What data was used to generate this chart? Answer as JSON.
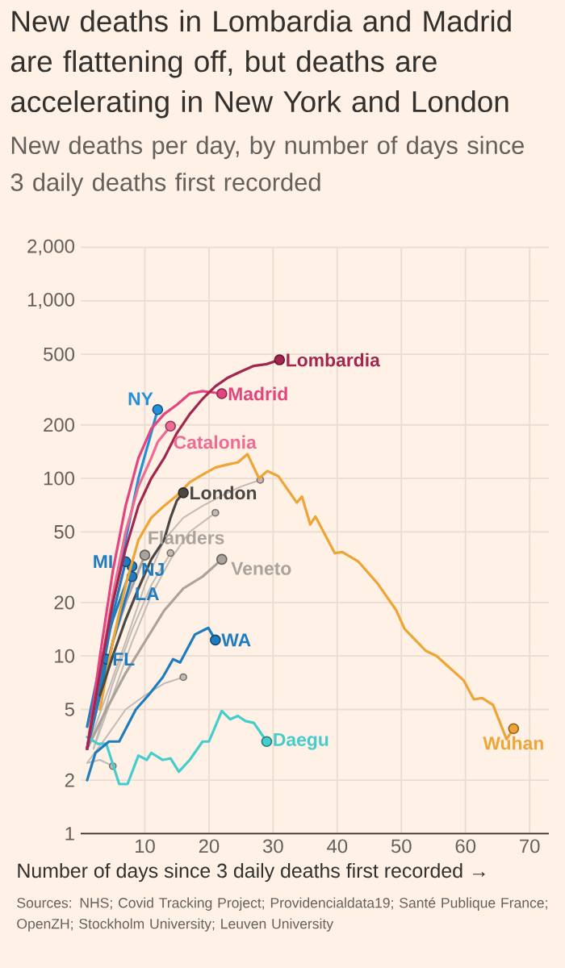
{
  "chart_data": {
    "type": "line",
    "title": "New deaths in Lombardia and Madrid are flattening off, but deaths are accelerating in New York and London",
    "subtitle": "New deaths per day, by number of days since 3 daily deaths first recorded",
    "xlabel": "Number of days since 3 daily deaths first recorded →",
    "annotations": [
      "Sources: NHS; Covid Tracking Project; Providencialdata19; Santé Publique France; OpenZH; Stockholm University; Leuven University"
    ],
    "log": true,
    "grid": true,
    "xlim": [
      0,
      73
    ],
    "xticks": [
      10,
      20,
      30,
      40,
      50,
      60,
      70
    ],
    "ylim": [
      1,
      2000
    ],
    "yticks": [
      1,
      2,
      5,
      10,
      20,
      50,
      100,
      200,
      500,
      {
        "value": 1000,
        "label": "1,000"
      },
      {
        "value": 2000,
        "label": "2,000"
      }
    ],
    "series": [
      {
        "name": "Lombardia",
        "color": "#a3264f",
        "x": [
          1,
          3,
          5,
          7,
          9,
          11,
          13,
          15,
          17,
          19,
          21,
          23,
          25,
          27,
          29,
          31
        ],
        "values": [
          3,
          8,
          20,
          40,
          70,
          100,
          130,
          180,
          230,
          280,
          330,
          370,
          400,
          430,
          440,
          465
        ]
      },
      {
        "name": "Madrid",
        "color": "#e3457f",
        "x": [
          1,
          3,
          5,
          7,
          9,
          11,
          13,
          15,
          17,
          19,
          22
        ],
        "values": [
          3,
          10,
          30,
          70,
          130,
          190,
          230,
          260,
          300,
          310,
          300
        ]
      },
      {
        "name": "Catalonia",
        "color": "#ee6b93",
        "x": [
          1,
          3,
          5,
          7,
          9,
          11,
          12,
          14
        ],
        "values": [
          3,
          8,
          22,
          50,
          90,
          130,
          160,
          197
        ]
      },
      {
        "name": "NY",
        "color": "#2590d8",
        "x": [
          1,
          3,
          5,
          7,
          9,
          11,
          12
        ],
        "values": [
          3,
          8,
          20,
          45,
          100,
          180,
          244
        ]
      },
      {
        "name": "London",
        "color": "#4a4745",
        "x": [
          3,
          5,
          7,
          9,
          11,
          13,
          14,
          15,
          16
        ],
        "values": [
          6,
          10,
          16,
          24,
          35,
          45,
          60,
          75,
          83
        ]
      },
      {
        "name": "Wuhan",
        "color": "#eea436",
        "x": [
          3,
          5,
          7,
          9,
          11,
          13,
          15,
          17,
          19,
          21,
          23,
          24.5,
          26,
          27.8,
          29.1,
          30.8,
          33.7,
          34.5,
          35.8,
          36.6,
          39.6,
          40.8,
          43.3,
          46.3,
          49.2,
          50.5,
          53.8,
          55.5,
          59.7,
          61.3,
          62.6,
          64.3,
          66.4,
          67.5
        ],
        "values": [
          5,
          12,
          25,
          45,
          60,
          70,
          80,
          95,
          105,
          115,
          120,
          123,
          137,
          100,
          110,
          103,
          73,
          79,
          55,
          61,
          38,
          38.5,
          34,
          25.6,
          18.1,
          14.2,
          10.7,
          10,
          7.3,
          5.7,
          5.8,
          5.3,
          3.4,
          3.9
        ]
      },
      {
        "name": "WA",
        "color": "#1f7cbf",
        "x": [
          1,
          2.3,
          4.4,
          6,
          8.6,
          10.7,
          12.8,
          14.4,
          15.5,
          17.8,
          19.9,
          21
        ],
        "values": [
          2,
          2.85,
          3.3,
          3.3,
          5,
          6.1,
          7.6,
          9.6,
          9.2,
          13.2,
          14.4,
          12.3
        ]
      },
      {
        "name": "Daegu",
        "color": "#45cccc",
        "x": [
          1,
          2.7,
          4,
          6,
          7.3,
          9,
          10.3,
          11,
          12.8,
          14,
          15.3,
          17,
          19,
          20,
          22,
          23.3,
          24.5,
          25.7,
          27,
          29
        ],
        "values": [
          3.5,
          3.2,
          3.2,
          1.9,
          1.9,
          2.75,
          2.6,
          2.85,
          2.6,
          2.65,
          2.23,
          2.6,
          3.3,
          3.3,
          4.9,
          4.4,
          4.6,
          4.3,
          4.2,
          3.3
        ]
      },
      {
        "name": "FL",
        "color": "#1f7cbf",
        "x": [
          1,
          2,
          3,
          4
        ],
        "values": [
          3,
          4.5,
          6.5,
          9.6
        ]
      },
      {
        "name": "MI",
        "color": "#1f7cbf",
        "x": [
          1,
          3,
          5,
          7
        ],
        "values": [
          3,
          7,
          17,
          34
        ]
      },
      {
        "name": "NJ",
        "color": "#1f7cbf",
        "x": [
          1,
          3,
          5,
          8
        ],
        "values": [
          4,
          9,
          16,
          32
        ]
      },
      {
        "name": "LA",
        "color": "#1f7cbf",
        "x": [
          1,
          3,
          5,
          8
        ],
        "values": [
          3,
          6,
          12,
          28
        ]
      },
      {
        "name": "Flanders",
        "color": "#a9a29d",
        "x": [
          1,
          3,
          5,
          7,
          9,
          10
        ],
        "values": [
          3,
          6,
          12,
          20,
          30,
          37
        ]
      },
      {
        "name": "Veneto",
        "color": "#a9a29d",
        "x": [
          1,
          4,
          7,
          10,
          13,
          16,
          19,
          22
        ],
        "values": [
          3,
          5,
          8,
          12,
          18,
          24,
          28,
          35
        ]
      },
      {
        "color": "#c2bbb5",
        "x": [
          1,
          4,
          7,
          10,
          13,
          16,
          19,
          22,
          25,
          28
        ],
        "values": [
          3,
          6,
          12,
          25,
          45,
          60,
          70,
          80,
          90,
          98
        ]
      },
      {
        "color": "#c2bbb5",
        "x": [
          2,
          5,
          8,
          11,
          14,
          17,
          21
        ],
        "values": [
          3,
          6,
          12,
          22,
          35,
          50,
          64
        ]
      },
      {
        "color": "#c2bbb5",
        "x": [
          1,
          4,
          7,
          10,
          13,
          16
        ],
        "values": [
          2.5,
          3.5,
          5,
          6,
          7,
          7.6
        ]
      },
      {
        "color": "#c2bbb5",
        "x": [
          2,
          5,
          8,
          11,
          14
        ],
        "values": [
          3,
          7,
          14,
          25,
          38
        ]
      },
      {
        "color": "#c2bbb5",
        "x": [
          1,
          3,
          5
        ],
        "values": [
          2.5,
          2.6,
          2.4
        ]
      }
    ]
  }
}
